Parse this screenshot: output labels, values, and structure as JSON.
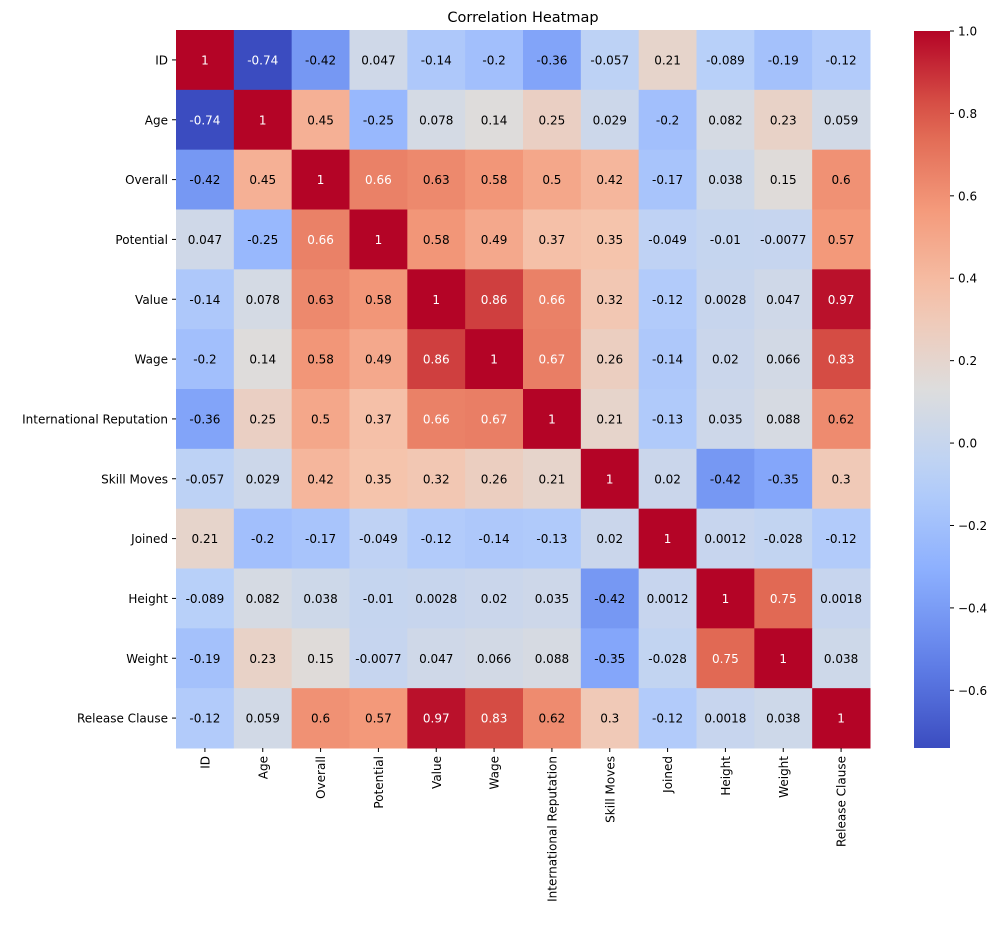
{
  "chart_data": {
    "type": "heatmap",
    "title": "Correlation Heatmap",
    "xlabel": "",
    "ylabel": "",
    "colormap": "coolwarm",
    "labels": [
      "ID",
      "Age",
      "Overall",
      "Potential",
      "Value",
      "Wage",
      "International Reputation",
      "Skill Moves",
      "Joined",
      "Height",
      "Weight",
      "Release Clause"
    ],
    "values": [
      [
        "1",
        "-0.74",
        "-0.42",
        "0.047",
        "-0.14",
        "-0.2",
        "-0.36",
        "-0.057",
        "0.21",
        "-0.089",
        "-0.19",
        "-0.12"
      ],
      [
        "-0.74",
        "1",
        "0.45",
        "-0.25",
        "0.078",
        "0.14",
        "0.25",
        "0.029",
        "-0.2",
        "0.082",
        "0.23",
        "0.059"
      ],
      [
        "-0.42",
        "0.45",
        "1",
        "0.66",
        "0.63",
        "0.58",
        "0.5",
        "0.42",
        "-0.17",
        "0.038",
        "0.15",
        "0.6"
      ],
      [
        "0.047",
        "-0.25",
        "0.66",
        "1",
        "0.58",
        "0.49",
        "0.37",
        "0.35",
        "-0.049",
        "-0.01",
        "-0.0077",
        "0.57"
      ],
      [
        "-0.14",
        "0.078",
        "0.63",
        "0.58",
        "1",
        "0.86",
        "0.66",
        "0.32",
        "-0.12",
        "0.0028",
        "0.047",
        "0.97"
      ],
      [
        "-0.2",
        "0.14",
        "0.58",
        "0.49",
        "0.86",
        "1",
        "0.67",
        "0.26",
        "-0.14",
        "0.02",
        "0.066",
        "0.83"
      ],
      [
        "-0.36",
        "0.25",
        "0.5",
        "0.37",
        "0.66",
        "0.67",
        "1",
        "0.21",
        "-0.13",
        "0.035",
        "0.088",
        "0.62"
      ],
      [
        "-0.057",
        "0.029",
        "0.42",
        "0.35",
        "0.32",
        "0.26",
        "0.21",
        "1",
        "0.02",
        "-0.42",
        "-0.35",
        "0.3"
      ],
      [
        "0.21",
        "-0.2",
        "-0.17",
        "-0.049",
        "-0.12",
        "-0.14",
        "-0.13",
        "0.02",
        "1",
        "0.0012",
        "-0.028",
        "-0.12"
      ],
      [
        "-0.089",
        "0.082",
        "0.038",
        "-0.01",
        "0.0028",
        "0.02",
        "0.035",
        "-0.42",
        "0.0012",
        "1",
        "0.75",
        "0.0018"
      ],
      [
        "-0.19",
        "0.23",
        "0.15",
        "-0.0077",
        "0.047",
        "0.066",
        "0.088",
        "-0.35",
        "-0.028",
        "0.75",
        "1",
        "0.038"
      ],
      [
        "-0.12",
        "0.059",
        "0.6",
        "0.57",
        "0.97",
        "0.83",
        "0.62",
        "0.3",
        "-0.12",
        "0.0018",
        "0.038",
        "1"
      ]
    ],
    "colorbar": {
      "range": [
        -0.74,
        1.0
      ],
      "ticks": [
        1.0,
        0.8,
        0.6,
        0.4,
        0.2,
        0.0,
        -0.2,
        -0.4,
        -0.6
      ],
      "tick_labels": [
        "1.0",
        "0.8",
        "0.6",
        "0.4",
        "0.2",
        "0.0",
        "−0.2",
        "−0.4",
        "−0.6"
      ]
    },
    "annotations": true,
    "grid": false,
    "legend": "colorbar-right"
  }
}
